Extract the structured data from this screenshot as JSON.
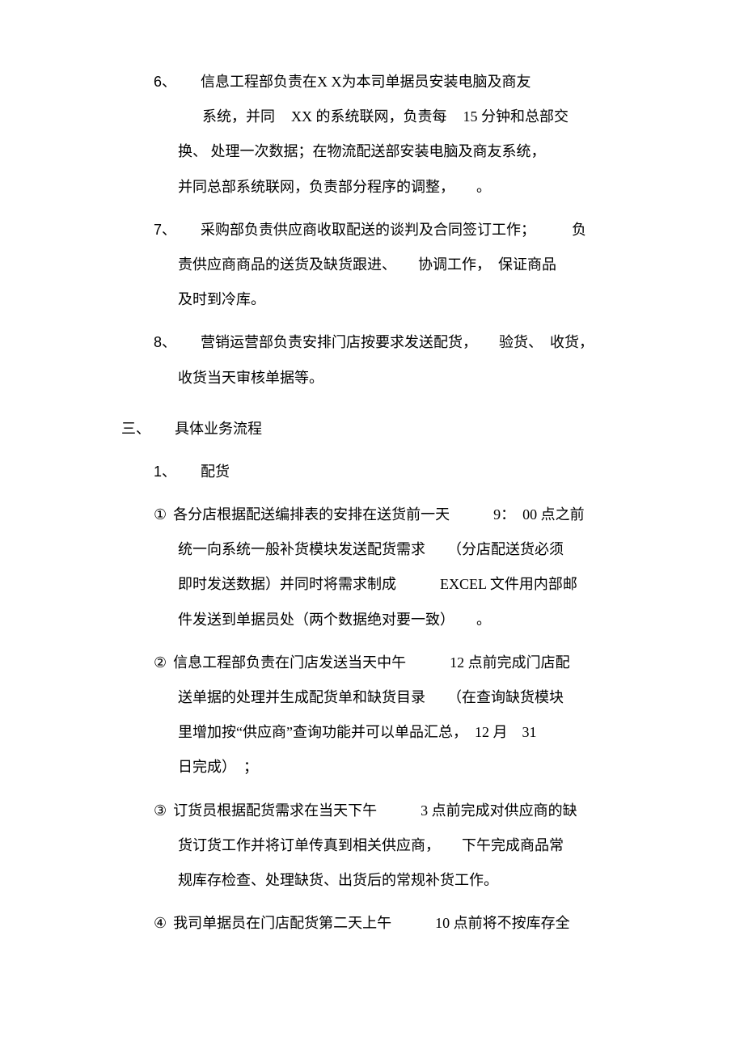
{
  "document": {
    "fontsize": 18,
    "line_height": 2.4,
    "text_color": "#000000",
    "background_color": "#ffffff",
    "items": {
      "i6": {
        "num": "6、",
        "l1": "信息工程部负责在X X为本司单据员安装电脑及商友",
        "l2a": "系统，并同",
        "l2b": "XX 的系统联网，负责每",
        "l2c": "15 分钟和总部交",
        "l3": "换、 处理一次数据；在物流配送部安装电脑及商友系统，",
        "l4": "并同总部系统联网，负责部分程序的调整，　　。"
      },
      "i7": {
        "num": "7、",
        "l1": "采购部负责供应商收取配送的谈判及合同签订工作；　　　负",
        "l2": "责供应商商品的送货及缺货跟进、　　协调工作，　保证商品",
        "l3": "及时到冷库。"
      },
      "i8": {
        "num": "8、",
        "l1": "营销运营部负责安排门店按要求发送配货，　　验货、　收货，",
        "l2": "收货当天审核单据等。"
      },
      "s3": {
        "num": "三、",
        "title": "具体业务流程"
      },
      "sub1": {
        "num": "1、",
        "title": "配货"
      },
      "c1": {
        "mark": "①",
        "l1": "各分店根据配送编排表的安排在送货前一天　　　9：　00 点之前",
        "l2": "统一向系统一般补货模块发送配货需求　　（分店配送货必须",
        "l3": "即时发送数据）并同时将需求制成　　　EXCEL 文件用内部邮",
        "l4": "件发送到单据员处（两个数据绝对要一致）　　。"
      },
      "c2": {
        "mark": "②",
        "l1": "信息工程部负责在门店发送当天中午　　　12 点前完成门店配",
        "l2": "送单据的处理并生成配货单和缺货目录　　（在查询缺货模块",
        "l3": "里增加按“供应商”查询功能并可以单品汇总，　12 月　31",
        "l4": "日完成）　；"
      },
      "c3": {
        "mark": "③",
        "l1": "订货员根据配货需求在当天下午　　　3 点前完成对供应商的缺",
        "l2": "货订货工作并将订单传真到相关供应商，　　下午完成商品常",
        "l3": "规库存检查、处理缺货、出货后的常规补货工作。"
      },
      "c4": {
        "mark": "④",
        "l1": "我司单据员在门店配货第二天上午　　　10 点前将不按库存全"
      }
    }
  }
}
